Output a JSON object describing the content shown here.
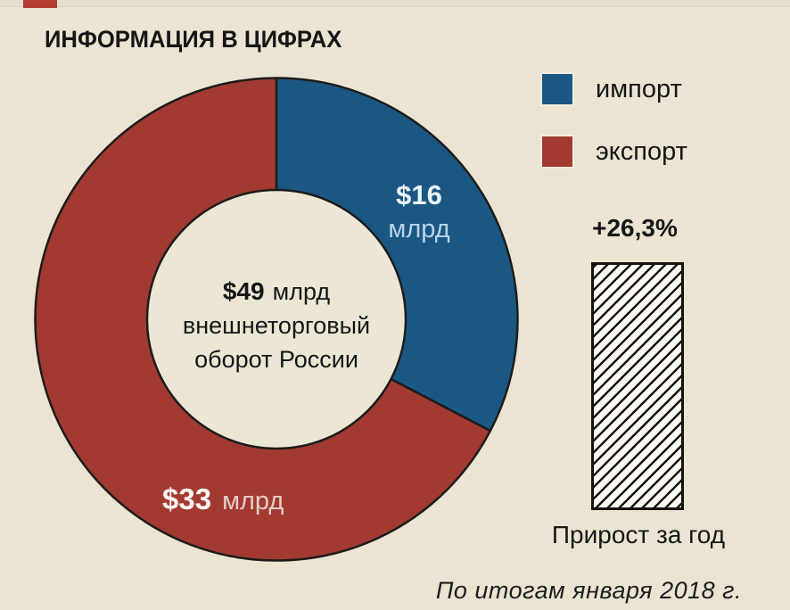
{
  "title": "ИНФОРМАЦИЯ В ЦИФРАХ",
  "legend": {
    "items": [
      {
        "label": "импорт",
        "color": "#1a5883"
      },
      {
        "label": "экспорт",
        "color": "#a23a31"
      }
    ]
  },
  "donut": {
    "center": {
      "value": "$49",
      "unit": "млрд",
      "line2": "внешнеторговый",
      "line3": "оборот России"
    },
    "labels": {
      "import_value": "$16",
      "import_unit": "млрд",
      "export_value": "$33",
      "export_unit": "млрд"
    }
  },
  "growth_bar": {
    "value": "+26,3%",
    "caption": "Прирост за год"
  },
  "footnote": "По итогам января 2018 г.",
  "colors": {
    "background": "#ebe4d2",
    "import": "#1a5883",
    "export": "#a23a31",
    "outline": "#1c1c1c",
    "hole": "#ece6d5",
    "accent": "#b23b32"
  },
  "chart_data": {
    "type": "pie",
    "donut": true,
    "title": "ИНФОРМАЦИЯ В ЦИФРАХ",
    "unit": "$ млрд",
    "slices": [
      {
        "label": "импорт",
        "value": 16,
        "display": "$16 млрд",
        "color": "#1a5883"
      },
      {
        "label": "экспорт",
        "value": 33,
        "display": "$33 млрд",
        "color": "#a23a31"
      }
    ],
    "center_total": {
      "value": 49,
      "display": "$49 млрд",
      "label": "внешнеторговый оборот России"
    },
    "start_angle_deg": 0,
    "direction": "clockwise",
    "legend_position": "right",
    "annotation": {
      "type": "hatched-bar",
      "value_percent": 26.3,
      "display": "+26,3%",
      "caption": "Прирост за год"
    },
    "footnote": "По итогам января 2018 г."
  }
}
